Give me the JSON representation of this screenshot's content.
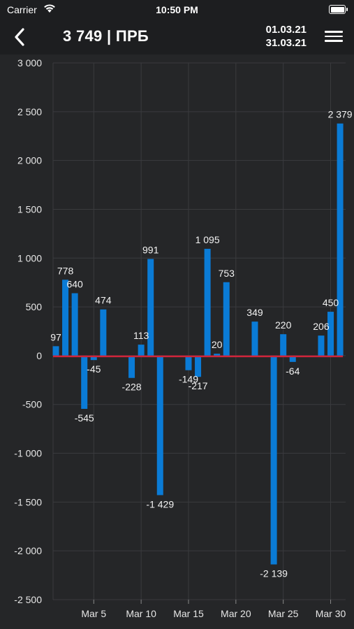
{
  "status_bar": {
    "carrier": "Carrier",
    "time": "10:50 PM"
  },
  "nav": {
    "title": "3 749 | ПРБ",
    "date_from": "01.03.21",
    "date_to": "31.03.21"
  },
  "colors": {
    "bar": "#0a7bd6",
    "zero_line": "#d0243a",
    "grid": "#3a3b3e",
    "background": "#252628"
  },
  "chart_data": {
    "type": "bar",
    "x": [
      "2021-03-01",
      "2021-03-02",
      "2021-03-03",
      "2021-03-04",
      "2021-03-05",
      "2021-03-06",
      "2021-03-07",
      "2021-03-08",
      "2021-03-09",
      "2021-03-10",
      "2021-03-11",
      "2021-03-12",
      "2021-03-13",
      "2021-03-14",
      "2021-03-15",
      "2021-03-16",
      "2021-03-17",
      "2021-03-18",
      "2021-03-19",
      "2021-03-20",
      "2021-03-21",
      "2021-03-22",
      "2021-03-23",
      "2021-03-24",
      "2021-03-25",
      "2021-03-26",
      "2021-03-27",
      "2021-03-28",
      "2021-03-29",
      "2021-03-30",
      "2021-03-31"
    ],
    "values": [
      97,
      778,
      640,
      -545,
      -45,
      474,
      0,
      0,
      -228,
      113,
      991,
      -1429,
      0,
      0,
      -149,
      -217,
      1095,
      20,
      753,
      0,
      0,
      349,
      0,
      -2139,
      220,
      -64,
      0,
      0,
      206,
      450,
      2379
    ],
    "data_labels": [
      "97",
      "778",
      "640",
      "-545",
      "-45",
      "474",
      null,
      null,
      "-228",
      "113",
      "991",
      "-1 429",
      null,
      null,
      "-149",
      "-217",
      "1 095",
      "20",
      "753",
      null,
      null,
      "349",
      null,
      "-2 139",
      "220",
      "-64",
      null,
      null,
      "206",
      "450",
      "2 379"
    ],
    "ylim": [
      -2500,
      3000
    ],
    "yticks": [
      3000,
      2500,
      2000,
      1500,
      1000,
      500,
      0,
      -500,
      -1000,
      -1500,
      -2000,
      -2500
    ],
    "ytick_labels": [
      "3 000",
      "2 500",
      "2 000",
      "1 500",
      "1 000",
      "500",
      "0",
      "-500",
      "-1 000",
      "-1 500",
      "-2 000",
      "-2 500"
    ],
    "xticks": [
      "2021-03-05",
      "2021-03-10",
      "2021-03-15",
      "2021-03-20",
      "2021-03-25",
      "2021-03-30"
    ],
    "xtick_labels": [
      "Mar 5",
      "Mar 10",
      "Mar 15",
      "Mar 20",
      "Mar 25",
      "Mar 30"
    ],
    "grid": true,
    "title": "",
    "xlabel": "",
    "ylabel": ""
  }
}
